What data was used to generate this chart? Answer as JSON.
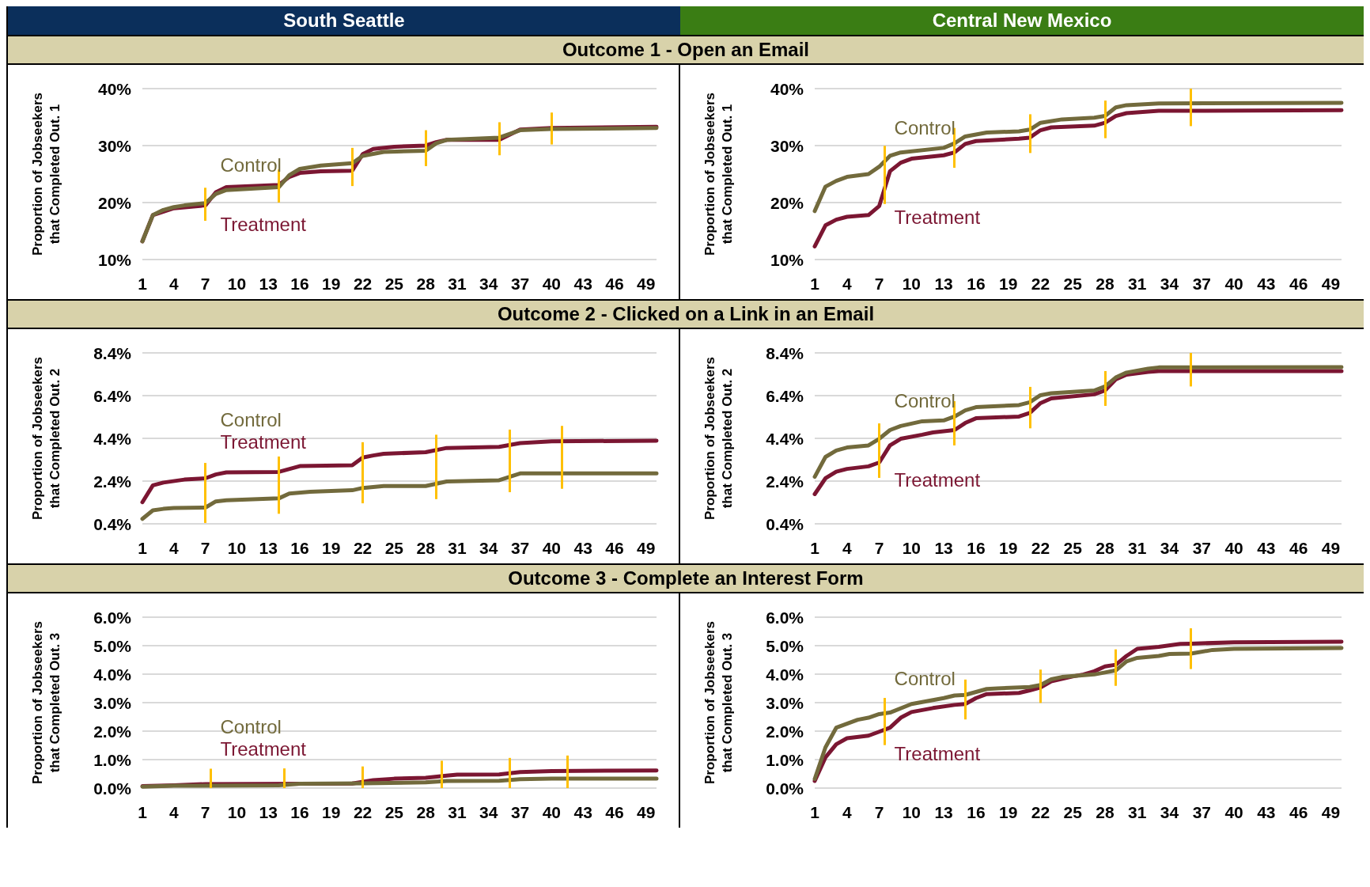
{
  "chart_data": [
    {
      "type": "line",
      "title": "South Seattle",
      "subtitle": "Outcome 1 - Open an Email",
      "ylabel": "Proportion of Jobseekers\nthat Completed Out. 1",
      "xlim": [
        1,
        50
      ],
      "xticks": [
        1,
        4,
        7,
        10,
        13,
        16,
        19,
        22,
        25,
        28,
        31,
        34,
        37,
        40,
        43,
        46,
        49
      ],
      "ylim": [
        10,
        40
      ],
      "yticks": [
        {
          "value": 10,
          "label": "10%"
        },
        {
          "value": 20,
          "label": "20%"
        },
        {
          "value": 30,
          "label": "30%"
        },
        {
          "value": 40,
          "label": "40%"
        }
      ],
      "grid": "y",
      "marker": "none",
      "series": [
        {
          "name": "Treatment",
          "color": "#7b1632",
          "x": [
            1,
            2,
            4,
            7,
            8,
            9,
            14,
            15,
            16,
            18,
            21,
            22,
            23,
            25,
            28,
            29,
            30,
            35,
            37,
            40,
            50
          ],
          "values": [
            13.2,
            17.8,
            19.0,
            19.5,
            21.8,
            22.7,
            23.1,
            24.5,
            25.2,
            25.5,
            25.6,
            28.5,
            29.4,
            29.8,
            30.0,
            30.6,
            31.0,
            31.0,
            32.8,
            33.1,
            33.3
          ]
        },
        {
          "name": "Control",
          "color": "#726a3c",
          "x": [
            1,
            2,
            3,
            4,
            5,
            7,
            8,
            9,
            13,
            14,
            15,
            16,
            18,
            21,
            22,
            24,
            28,
            29,
            30,
            35,
            37,
            40,
            50
          ],
          "values": [
            13.2,
            17.8,
            18.7,
            19.2,
            19.5,
            19.9,
            21.5,
            22.2,
            22.6,
            22.7,
            24.8,
            25.9,
            26.5,
            26.9,
            28.2,
            28.9,
            29.1,
            30.4,
            31.0,
            31.4,
            32.7,
            32.9,
            33.1
          ]
        }
      ],
      "ref_lines": [
        {
          "axis": "x",
          "value": 7,
          "color": "#ffc000"
        },
        {
          "axis": "x",
          "value": 14,
          "color": "#ffc000"
        },
        {
          "axis": "x",
          "value": 21,
          "color": "#ffc000"
        },
        {
          "axis": "x",
          "value": 28,
          "color": "#ffc000"
        },
        {
          "axis": "x",
          "value": 35,
          "color": "#ffc000"
        },
        {
          "axis": "x",
          "value": 40,
          "color": "#ffc000"
        }
      ]
    },
    {
      "type": "line",
      "title": "Central New Mexico",
      "ylabel": "Proportion of Jobseekers\nthat Completed Out. 1",
      "xlim": [
        1,
        50
      ],
      "xticks": [
        1,
        4,
        7,
        10,
        13,
        16,
        19,
        22,
        25,
        28,
        31,
        34,
        37,
        40,
        43,
        46,
        49
      ],
      "ylim": [
        10,
        40
      ],
      "yticks": [
        {
          "value": 10,
          "label": "10%"
        },
        {
          "value": 20,
          "label": "20%"
        },
        {
          "value": 30,
          "label": "30%"
        },
        {
          "value": 40,
          "label": "40%"
        }
      ],
      "grid": "y",
      "marker": "none",
      "series": [
        {
          "name": "Treatment",
          "color": "#7b1632",
          "x": [
            1,
            2,
            3,
            4,
            6,
            7,
            8,
            9,
            10,
            13,
            14,
            15,
            16,
            20,
            21,
            22,
            23,
            27,
            28,
            29,
            30,
            33,
            50
          ],
          "values": [
            12.3,
            16.0,
            17.0,
            17.5,
            17.8,
            19.4,
            25.5,
            27.0,
            27.7,
            28.3,
            28.8,
            30.3,
            30.8,
            31.2,
            31.4,
            32.7,
            33.2,
            33.5,
            34.0,
            35.2,
            35.7,
            36.1,
            36.2
          ]
        },
        {
          "name": "Control",
          "color": "#726a3c",
          "x": [
            1,
            2,
            3,
            4,
            6,
            7,
            8,
            9,
            13,
            14,
            15,
            17,
            20,
            21,
            22,
            24,
            27,
            28,
            29,
            30,
            33,
            50
          ],
          "values": [
            18.5,
            22.8,
            23.8,
            24.5,
            25.0,
            26.3,
            28.2,
            28.8,
            29.6,
            30.4,
            31.6,
            32.3,
            32.5,
            32.8,
            34.0,
            34.6,
            34.9,
            35.2,
            36.7,
            37.1,
            37.4,
            37.5
          ]
        }
      ],
      "ref_lines": [
        {
          "axis": "x",
          "value": 7.5,
          "color": "#ffc000"
        },
        {
          "axis": "x",
          "value": 14,
          "color": "#ffc000"
        },
        {
          "axis": "x",
          "value": 21,
          "color": "#ffc000"
        },
        {
          "axis": "x",
          "value": 28,
          "color": "#ffc000"
        },
        {
          "axis": "x",
          "value": 36,
          "color": "#ffc000"
        }
      ]
    },
    {
      "type": "line",
      "subtitle": "Outcome 2 - Clicked on a Link in an Email",
      "ylabel": "Proportion of Jobseekers\nthat Completed Out. 2",
      "xlim": [
        1,
        50
      ],
      "xticks": [
        1,
        4,
        7,
        10,
        13,
        16,
        19,
        22,
        25,
        28,
        31,
        34,
        37,
        40,
        43,
        46,
        49
      ],
      "ylim": [
        0.4,
        8.4
      ],
      "yticks": [
        {
          "value": 0.4,
          "label": "0.4%"
        },
        {
          "value": 2.4,
          "label": "2.4%"
        },
        {
          "value": 4.4,
          "label": "4.4%"
        },
        {
          "value": 6.4,
          "label": "6.4%"
        },
        {
          "value": 8.4,
          "label": "8.4%"
        }
      ],
      "grid": "y",
      "marker": "none",
      "series": [
        {
          "name": "Treatment",
          "color": "#7b1632",
          "x": [
            1,
            2,
            3,
            5,
            7,
            8,
            9,
            14,
            16,
            21,
            22,
            23,
            24,
            28,
            30,
            35,
            37,
            40,
            50
          ],
          "values": [
            1.41,
            2.2,
            2.33,
            2.47,
            2.53,
            2.71,
            2.81,
            2.83,
            3.1,
            3.14,
            3.5,
            3.6,
            3.68,
            3.75,
            3.95,
            4.0,
            4.18,
            4.26,
            4.29
          ]
        },
        {
          "name": "Control",
          "color": "#726a3c",
          "x": [
            1,
            2,
            3,
            4,
            7,
            8,
            9,
            14,
            15,
            17,
            21,
            22,
            24,
            28,
            30,
            35,
            37,
            50
          ],
          "values": [
            0.63,
            1.03,
            1.1,
            1.14,
            1.16,
            1.45,
            1.5,
            1.59,
            1.82,
            1.9,
            1.97,
            2.08,
            2.17,
            2.17,
            2.38,
            2.44,
            2.76,
            2.76
          ]
        }
      ],
      "ref_lines": [
        {
          "axis": "x",
          "value": 7,
          "color": "#ffc000"
        },
        {
          "axis": "x",
          "value": 14,
          "color": "#ffc000"
        },
        {
          "axis": "x",
          "value": 22,
          "color": "#ffc000"
        },
        {
          "axis": "x",
          "value": 29,
          "color": "#ffc000"
        },
        {
          "axis": "x",
          "value": 36,
          "color": "#ffc000"
        },
        {
          "axis": "x",
          "value": 41,
          "color": "#ffc000"
        }
      ]
    },
    {
      "type": "line",
      "ylabel": "Proportion of Jobseekers\nthat Completed Out. 2",
      "xlim": [
        1,
        50
      ],
      "xticks": [
        1,
        4,
        7,
        10,
        13,
        16,
        19,
        22,
        25,
        28,
        31,
        34,
        37,
        40,
        43,
        46,
        49
      ],
      "ylim": [
        0.4,
        8.4
      ],
      "yticks": [
        {
          "value": 0.4,
          "label": "0.4%"
        },
        {
          "value": 2.4,
          "label": "2.4%"
        },
        {
          "value": 4.4,
          "label": "4.4%"
        },
        {
          "value": 6.4,
          "label": "6.4%"
        },
        {
          "value": 8.4,
          "label": "8.4%"
        }
      ],
      "grid": "y",
      "marker": "none",
      "series": [
        {
          "name": "Treatment",
          "color": "#7b1632",
          "x": [
            1,
            2,
            3,
            4,
            6,
            7,
            8,
            9,
            11,
            12,
            14,
            15,
            16,
            20,
            21,
            22,
            23,
            27,
            28,
            29,
            30,
            32,
            33,
            50
          ],
          "values": [
            1.79,
            2.53,
            2.84,
            2.97,
            3.09,
            3.27,
            4.07,
            4.38,
            4.57,
            4.68,
            4.79,
            5.12,
            5.34,
            5.42,
            5.59,
            6.05,
            6.27,
            6.46,
            6.64,
            7.16,
            7.38,
            7.51,
            7.55,
            7.55
          ]
        },
        {
          "name": "Control",
          "color": "#726a3c",
          "x": [
            1,
            2,
            3,
            4,
            6,
            7,
            8,
            9,
            11,
            13,
            14,
            15,
            16,
            20,
            21,
            22,
            23,
            27,
            28,
            29,
            30,
            32,
            33,
            50
          ],
          "values": [
            2.6,
            3.53,
            3.83,
            3.97,
            4.07,
            4.38,
            4.79,
            4.98,
            5.2,
            5.24,
            5.42,
            5.71,
            5.86,
            5.96,
            6.09,
            6.42,
            6.51,
            6.64,
            6.83,
            7.25,
            7.48,
            7.66,
            7.72,
            7.73
          ]
        }
      ],
      "ref_lines": [
        {
          "axis": "x",
          "value": 7,
          "color": "#ffc000"
        },
        {
          "axis": "x",
          "value": 14,
          "color": "#ffc000"
        },
        {
          "axis": "x",
          "value": 21,
          "color": "#ffc000"
        },
        {
          "axis": "x",
          "value": 28,
          "color": "#ffc000"
        },
        {
          "axis": "x",
          "value": 36,
          "color": "#ffc000"
        }
      ]
    },
    {
      "type": "line",
      "subtitle": "Outcome 3 - Complete an Interest Form",
      "ylabel": "Proportion of Jobseekers\nthat Completed Out. 3",
      "xlim": [
        1,
        50
      ],
      "xticks": [
        1,
        4,
        7,
        10,
        13,
        16,
        19,
        22,
        25,
        28,
        31,
        34,
        37,
        40,
        43,
        46,
        49
      ],
      "ylim": [
        0,
        6
      ],
      "yticks": [
        {
          "value": 0,
          "label": "0.0%"
        },
        {
          "value": 1,
          "label": "1.0%"
        },
        {
          "value": 2,
          "label": "2.0%"
        },
        {
          "value": 3,
          "label": "3.0%"
        },
        {
          "value": 4,
          "label": "4.0%"
        },
        {
          "value": 5,
          "label": "5.0%"
        },
        {
          "value": 6,
          "label": "6.0%"
        }
      ],
      "grid": "y",
      "marker": "none",
      "series": [
        {
          "name": "Treatment",
          "color": "#7b1632",
          "x": [
            1,
            4,
            7,
            21,
            23,
            25,
            28,
            30,
            31,
            35,
            37,
            40,
            50
          ],
          "values": [
            0.07,
            0.1,
            0.14,
            0.16,
            0.28,
            0.33,
            0.36,
            0.44,
            0.47,
            0.48,
            0.56,
            0.6,
            0.62
          ]
        },
        {
          "name": "Control",
          "color": "#726a3c",
          "x": [
            1,
            4,
            14,
            16,
            22,
            28,
            30,
            35,
            37,
            40,
            50
          ],
          "values": [
            0.05,
            0.08,
            0.1,
            0.15,
            0.17,
            0.2,
            0.25,
            0.26,
            0.31,
            0.33,
            0.33
          ]
        }
      ],
      "ref_lines": [
        {
          "axis": "x",
          "value": 7.5,
          "color": "#ffc000"
        },
        {
          "axis": "x",
          "value": 14.5,
          "color": "#ffc000"
        },
        {
          "axis": "x",
          "value": 22,
          "color": "#ffc000"
        },
        {
          "axis": "x",
          "value": 29.5,
          "color": "#ffc000"
        },
        {
          "axis": "x",
          "value": 36,
          "color": "#ffc000"
        },
        {
          "axis": "x",
          "value": 41.5,
          "color": "#ffc000"
        }
      ]
    },
    {
      "type": "line",
      "ylabel": "Proportion of Jobseekers\nthat Completed Out. 3",
      "xlim": [
        1,
        50
      ],
      "xticks": [
        1,
        4,
        7,
        10,
        13,
        16,
        19,
        22,
        25,
        28,
        31,
        34,
        37,
        40,
        43,
        46,
        49
      ],
      "ylim": [
        0,
        6
      ],
      "yticks": [
        {
          "value": 0,
          "label": "0.0%"
        },
        {
          "value": 1,
          "label": "1.0%"
        },
        {
          "value": 2,
          "label": "2.0%"
        },
        {
          "value": 3,
          "label": "3.0%"
        },
        {
          "value": 4,
          "label": "4.0%"
        },
        {
          "value": 5,
          "label": "5.0%"
        },
        {
          "value": 6,
          "label": "6.0%"
        }
      ],
      "grid": "y",
      "marker": "none",
      "series": [
        {
          "name": "Treatment",
          "color": "#7b1632",
          "x": [
            1,
            2,
            3,
            4,
            6,
            7,
            8,
            9,
            10,
            12,
            14,
            15,
            16,
            17,
            20,
            21,
            22,
            23,
            25,
            26,
            27,
            28,
            29,
            30,
            31,
            33,
            35,
            36,
            40,
            50
          ],
          "values": [
            0.25,
            1.08,
            1.54,
            1.75,
            1.84,
            1.98,
            2.12,
            2.47,
            2.67,
            2.81,
            2.92,
            2.95,
            3.16,
            3.3,
            3.34,
            3.43,
            3.53,
            3.75,
            3.92,
            3.99,
            4.1,
            4.27,
            4.33,
            4.64,
            4.89,
            4.96,
            5.06,
            5.07,
            5.12,
            5.14
          ]
        },
        {
          "name": "Control",
          "color": "#726a3c",
          "x": [
            1,
            2,
            3,
            4,
            5,
            6,
            7,
            8,
            10,
            12,
            13,
            14,
            15,
            17,
            18,
            21,
            22,
            23,
            24,
            27,
            28,
            29,
            30,
            31,
            33,
            34,
            36,
            38,
            40,
            50
          ],
          "values": [
            0.32,
            1.43,
            2.12,
            2.26,
            2.4,
            2.47,
            2.6,
            2.65,
            2.95,
            3.09,
            3.16,
            3.25,
            3.27,
            3.48,
            3.5,
            3.55,
            3.62,
            3.82,
            3.9,
            3.99,
            4.06,
            4.13,
            4.45,
            4.57,
            4.64,
            4.71,
            4.72,
            4.85,
            4.89,
            4.92
          ]
        }
      ],
      "ref_lines": [
        {
          "axis": "x",
          "value": 7.5,
          "color": "#ffc000"
        },
        {
          "axis": "x",
          "value": 15,
          "color": "#ffc000"
        },
        {
          "axis": "x",
          "value": 22,
          "color": "#ffc000"
        },
        {
          "axis": "x",
          "value": 29,
          "color": "#ffc000"
        },
        {
          "axis": "x",
          "value": 36,
          "color": "#ffc000"
        }
      ]
    }
  ]
}
